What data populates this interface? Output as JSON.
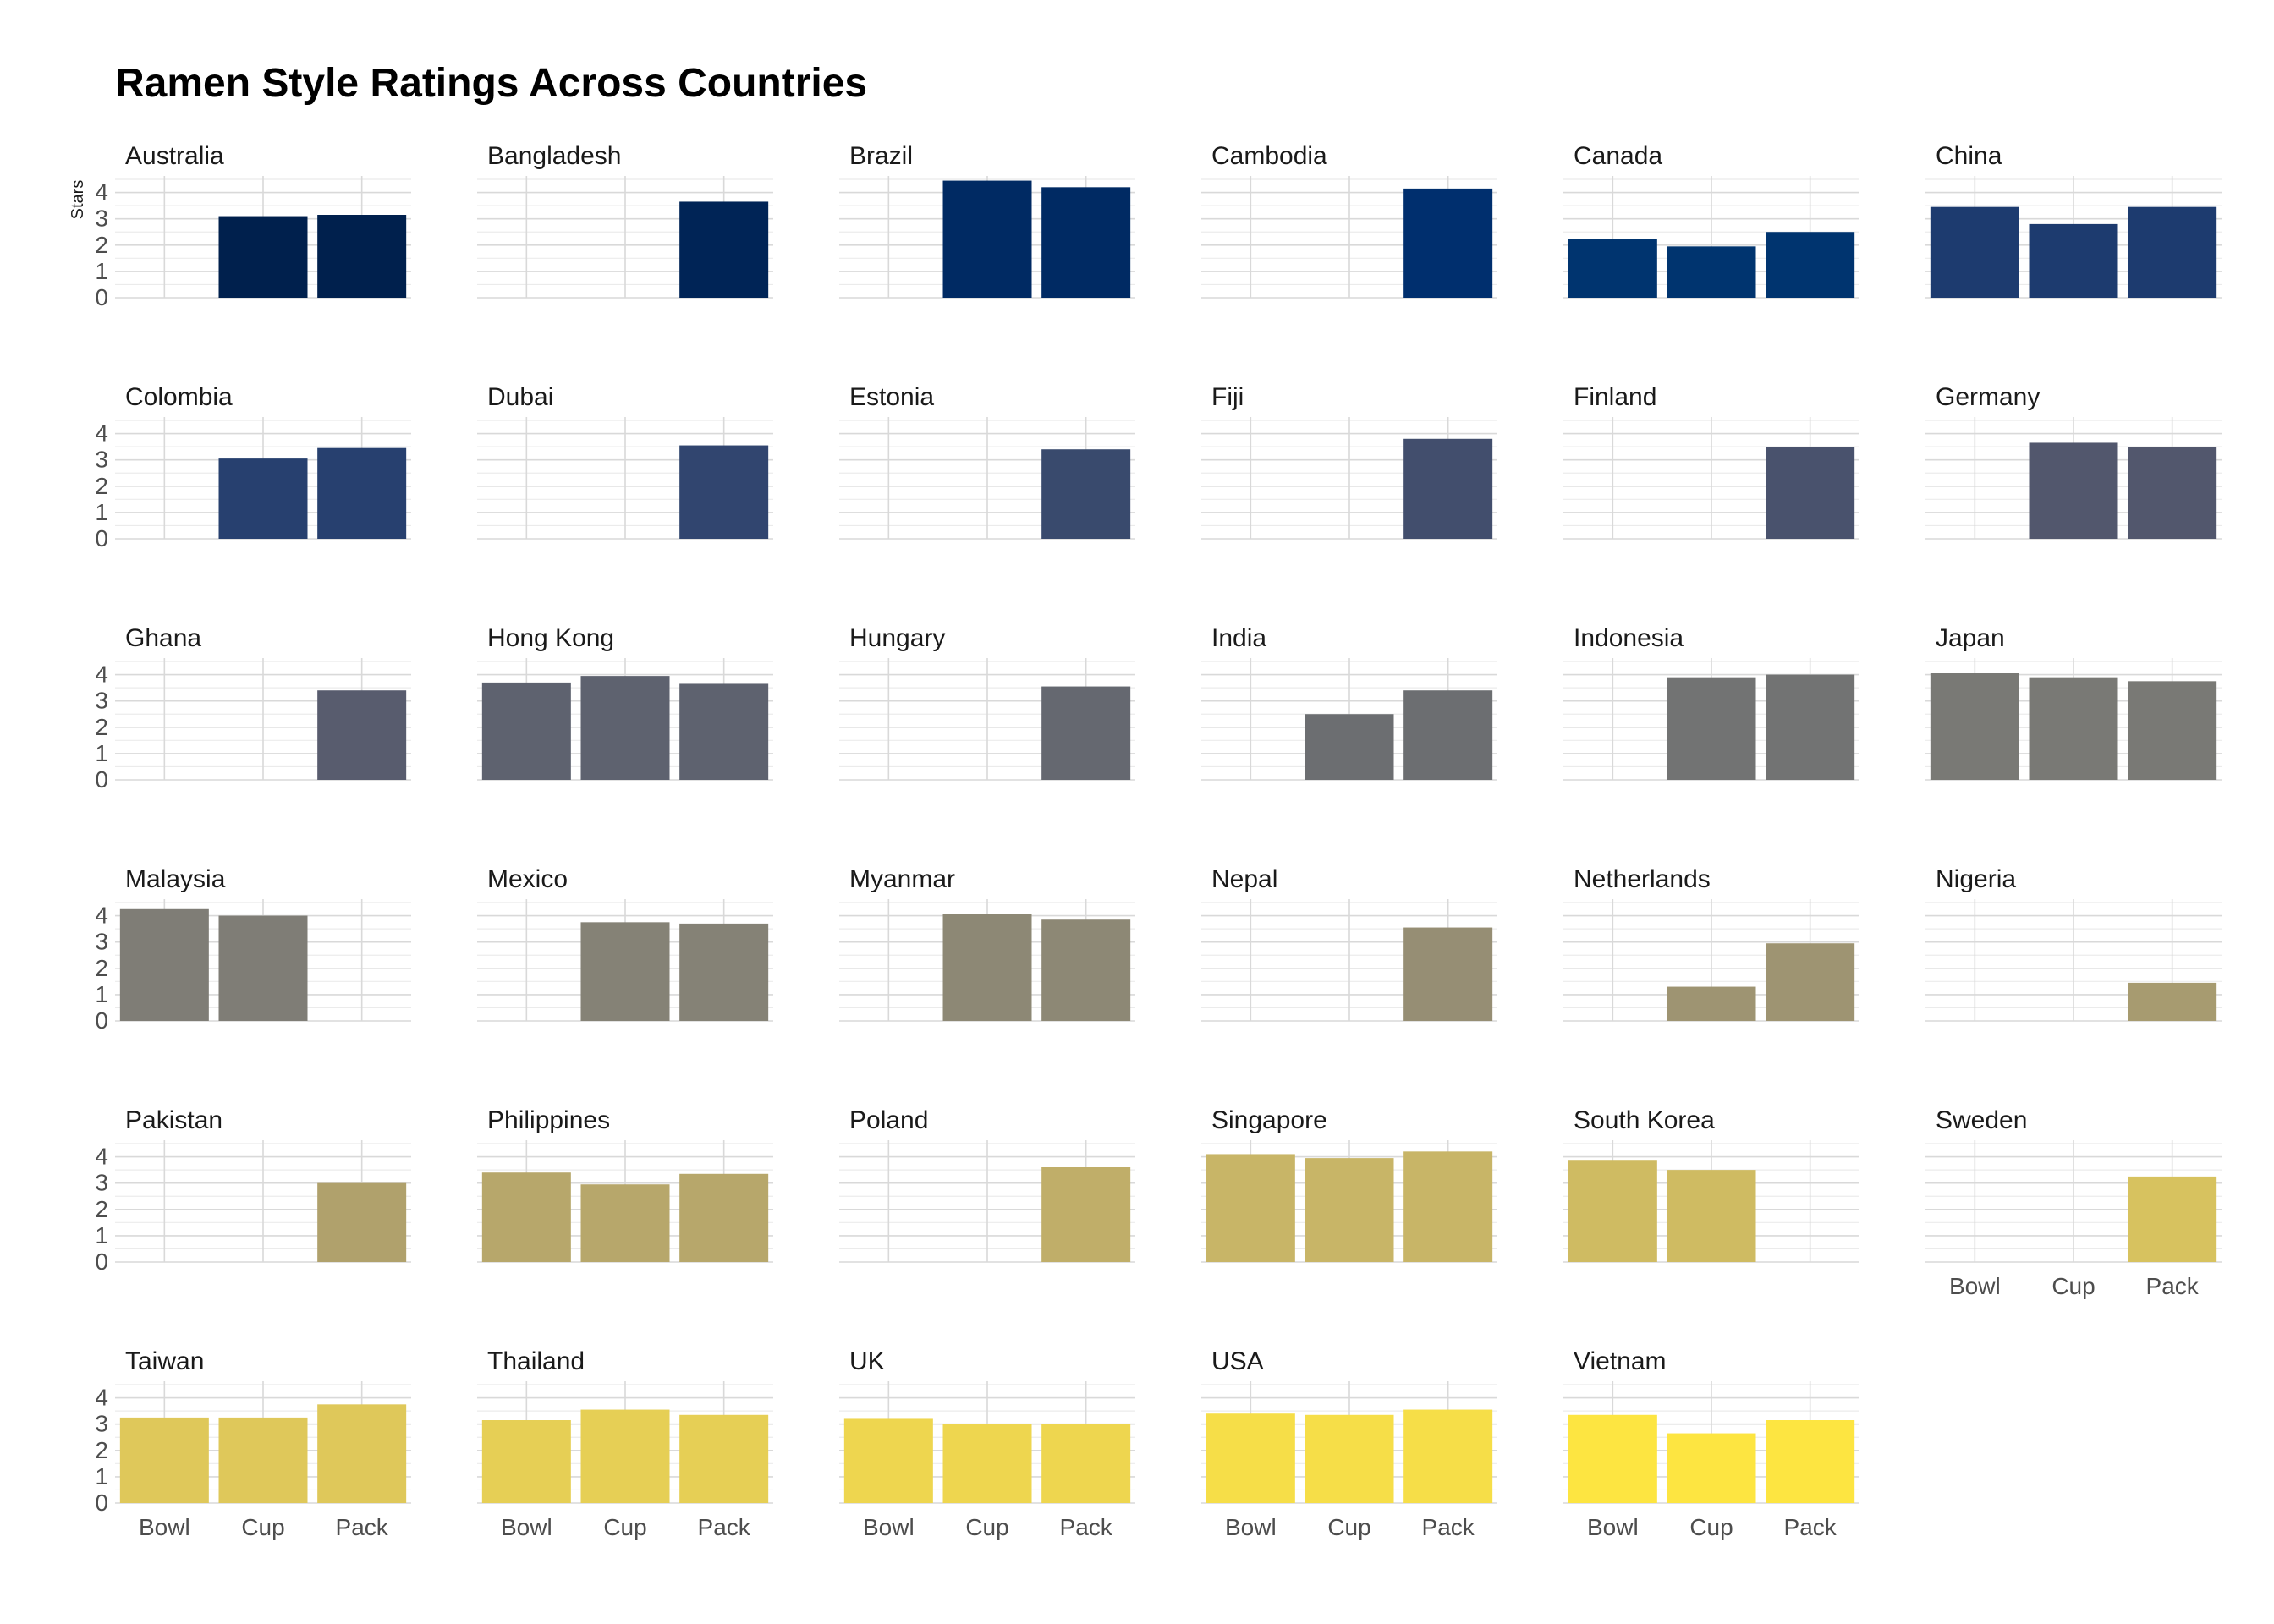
{
  "chart_data": {
    "type": "bar",
    "title": "Ramen Style Ratings Across Countries",
    "xlabel": "",
    "ylabel": "Stars",
    "categories": [
      "Bowl",
      "Cup",
      "Pack"
    ],
    "yticks": [
      "0",
      "1",
      "2",
      "3",
      "4"
    ],
    "ylim": [
      0,
      4.5
    ],
    "grid": true,
    "legend": "none",
    "facets": [
      {
        "name": "Australia",
        "values": [
          null,
          3.1,
          3.15
        ],
        "color": "#00204d"
      },
      {
        "name": "Bangladesh",
        "values": [
          null,
          null,
          3.65
        ],
        "color": "#002456"
      },
      {
        "name": "Brazil",
        "values": [
          null,
          4.45,
          4.2
        ],
        "color": "#002a63"
      },
      {
        "name": "Cambodia",
        "values": [
          null,
          null,
          4.15
        ],
        "color": "#002f6e"
      },
      {
        "name": "Canada",
        "values": [
          2.25,
          1.95,
          2.5
        ],
        "color": "#00346f"
      },
      {
        "name": "China",
        "values": [
          3.45,
          2.8,
          3.45
        ],
        "color": "#1d3b6f"
      },
      {
        "name": "Colombia",
        "values": [
          null,
          3.05,
          3.45
        ],
        "color": "#27406f"
      },
      {
        "name": "Dubai",
        "values": [
          null,
          null,
          3.55
        ],
        "color": "#31456f"
      },
      {
        "name": "Estonia",
        "values": [
          null,
          null,
          3.4
        ],
        "color": "#394a6d"
      },
      {
        "name": "Fiji",
        "values": [
          null,
          null,
          3.8
        ],
        "color": "#424e6d"
      },
      {
        "name": "Finland",
        "values": [
          null,
          null,
          3.5
        ],
        "color": "#49526d"
      },
      {
        "name": "Germany",
        "values": [
          null,
          3.65,
          3.5
        ],
        "color": "#52576d"
      },
      {
        "name": "Ghana",
        "values": [
          null,
          null,
          3.4
        ],
        "color": "#585c6e"
      },
      {
        "name": "Hong Kong",
        "values": [
          3.7,
          3.95,
          3.65
        ],
        "color": "#5e626f"
      },
      {
        "name": "Hungary",
        "values": [
          null,
          null,
          3.55
        ],
        "color": "#656870"
      },
      {
        "name": "India",
        "values": [
          null,
          2.5,
          3.4
        ],
        "color": "#6c6e71"
      },
      {
        "name": "Indonesia",
        "values": [
          null,
          3.9,
          4.0
        ],
        "color": "#727373"
      },
      {
        "name": "Japan",
        "values": [
          4.05,
          3.9,
          3.75
        ],
        "color": "#797975"
      },
      {
        "name": "Malaysia",
        "values": [
          4.25,
          4.0,
          null
        ],
        "color": "#7f7d76"
      },
      {
        "name": "Mexico",
        "values": [
          null,
          3.75,
          3.7
        ],
        "color": "#858276"
      },
      {
        "name": "Myanmar",
        "values": [
          null,
          4.05,
          3.85
        ],
        "color": "#8d8875"
      },
      {
        "name": "Nepal",
        "values": [
          null,
          null,
          3.55
        ],
        "color": "#968e74"
      },
      {
        "name": "Netherlands",
        "values": [
          null,
          1.3,
          2.95
        ],
        "color": "#9e9472"
      },
      {
        "name": "Nigeria",
        "values": [
          null,
          null,
          1.45
        ],
        "color": "#a79b70"
      },
      {
        "name": "Pakistan",
        "values": [
          null,
          null,
          3.0
        ],
        "color": "#b0a16c"
      },
      {
        "name": "Philippines",
        "values": [
          3.4,
          2.95,
          3.35
        ],
        "color": "#b7a76b"
      },
      {
        "name": "Poland",
        "values": [
          null,
          null,
          3.6
        ],
        "color": "#c0ae69"
      },
      {
        "name": "Singapore",
        "values": [
          4.1,
          3.95,
          4.2
        ],
        "color": "#c8b567"
      },
      {
        "name": "South Korea",
        "values": [
          3.85,
          3.5,
          null
        ],
        "color": "#cfbb62"
      },
      {
        "name": "Sweden",
        "values": [
          null,
          null,
          3.25
        ],
        "color": "#d7c25f"
      },
      {
        "name": "Taiwan",
        "values": [
          3.25,
          3.25,
          3.75
        ],
        "color": "#dfc85a"
      },
      {
        "name": "Thailand",
        "values": [
          3.15,
          3.55,
          3.35
        ],
        "color": "#e6cf55"
      },
      {
        "name": "UK",
        "values": [
          3.2,
          3.0,
          3.0
        ],
        "color": "#eed64f"
      },
      {
        "name": "USA",
        "values": [
          3.4,
          3.35,
          3.55
        ],
        "color": "#f6de48"
      },
      {
        "name": "Vietnam",
        "values": [
          3.35,
          2.65,
          3.15
        ],
        "color": "#fde541"
      }
    ]
  }
}
